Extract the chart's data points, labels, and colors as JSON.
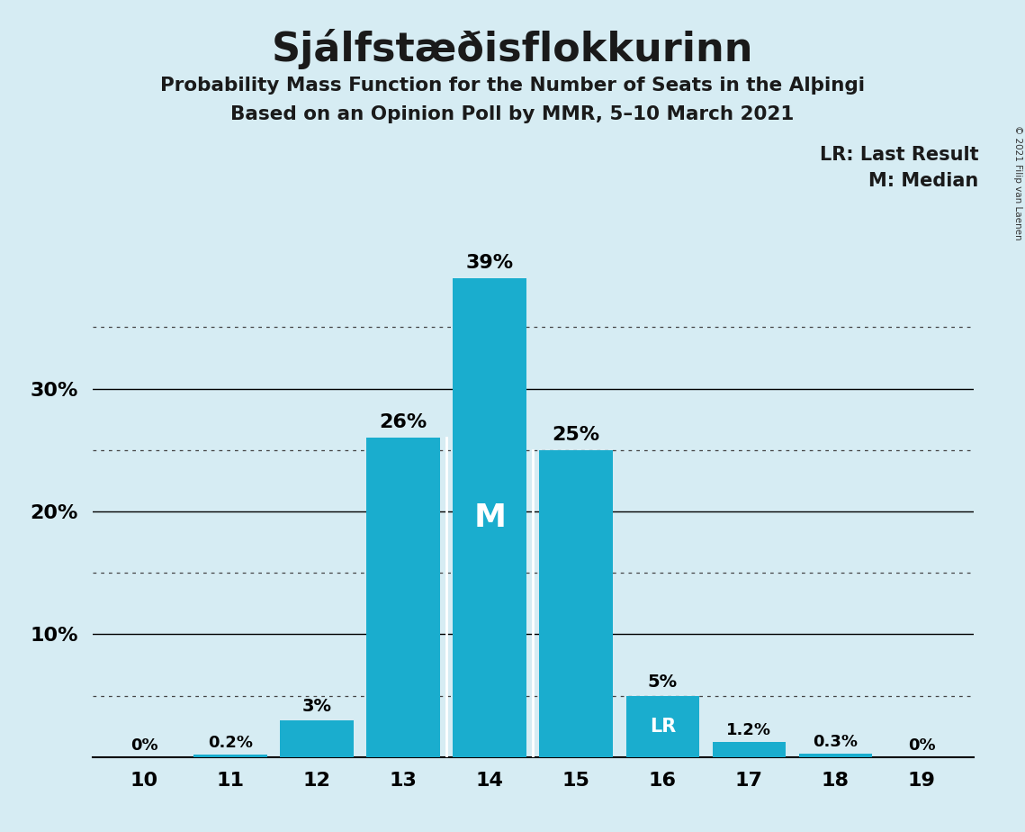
{
  "title": "Sjálfstæðisflokkurinn",
  "subtitle1": "Probability Mass Function for the Number of Seats in the Alþingi",
  "subtitle2": "Based on an Opinion Poll by MMR, 5–10 March 2021",
  "copyright": "© 2021 Filip van Laenen",
  "legend_lr": "LR: Last Result",
  "legend_m": "M: Median",
  "categories": [
    10,
    11,
    12,
    13,
    14,
    15,
    16,
    17,
    18,
    19
  ],
  "values": [
    0.0,
    0.2,
    3.0,
    26.0,
    39.0,
    25.0,
    5.0,
    1.2,
    0.3,
    0.0
  ],
  "labels": [
    "0%",
    "0.2%",
    "3%",
    "26%",
    "39%",
    "25%",
    "5%",
    "1.2%",
    "0.3%",
    "0%"
  ],
  "bar_color": "#1AADCE",
  "background_color": "#D6ECF3",
  "median_seat": 14,
  "lr_seat": 16,
  "median_label": "M",
  "lr_label": "LR",
  "ylim": [
    0,
    42
  ],
  "solid_gridlines": [
    10,
    20,
    30
  ],
  "dotted_gridlines": [
    5,
    15,
    25,
    35
  ]
}
